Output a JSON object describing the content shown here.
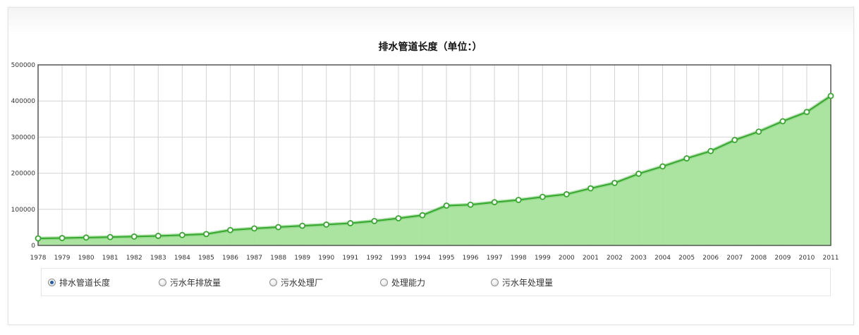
{
  "chart_data": {
    "type": "area",
    "title": "排水管道长度（单位：）",
    "ylim": [
      0,
      500000
    ],
    "yticks": [
      0,
      100000,
      200000,
      300000,
      400000,
      500000
    ],
    "x": [
      "1978",
      "1979",
      "1980",
      "1981",
      "1982",
      "1983",
      "1984",
      "1985",
      "1986",
      "1987",
      "1988",
      "1989",
      "1990",
      "1991",
      "1992",
      "1993",
      "1994",
      "1995",
      "1996",
      "1997",
      "1998",
      "1999",
      "2000",
      "2001",
      "2002",
      "2003",
      "2004",
      "2005",
      "2006",
      "2007",
      "2008",
      "2009",
      "2010",
      "2011"
    ],
    "series": [
      {
        "values": [
          19556,
          20432,
          21860,
          23183,
          24638,
          26448,
          28775,
          31556,
          42549,
          47107,
          50678,
          54510,
          57787,
          61601,
          67672,
          75207,
          83647,
          110293,
          112812,
          119739,
          125943,
          134486,
          141758,
          158128,
          173042,
          198645,
          218881,
          241056,
          261379,
          291933,
          315220,
          343892,
          369553,
          414074
        ]
      }
    ],
    "grid": true,
    "colors": {
      "line": "#36a82e",
      "fill": "#a6e39c",
      "marker_fill": "#ffffff"
    }
  },
  "radio_options": [
    {
      "label": "排水管道长度",
      "checked": true
    },
    {
      "label": "污水年排放量",
      "checked": false
    },
    {
      "label": "污水处理厂",
      "checked": false
    },
    {
      "label": "处理能力",
      "checked": false
    },
    {
      "label": "污水年处理量",
      "checked": false
    }
  ]
}
